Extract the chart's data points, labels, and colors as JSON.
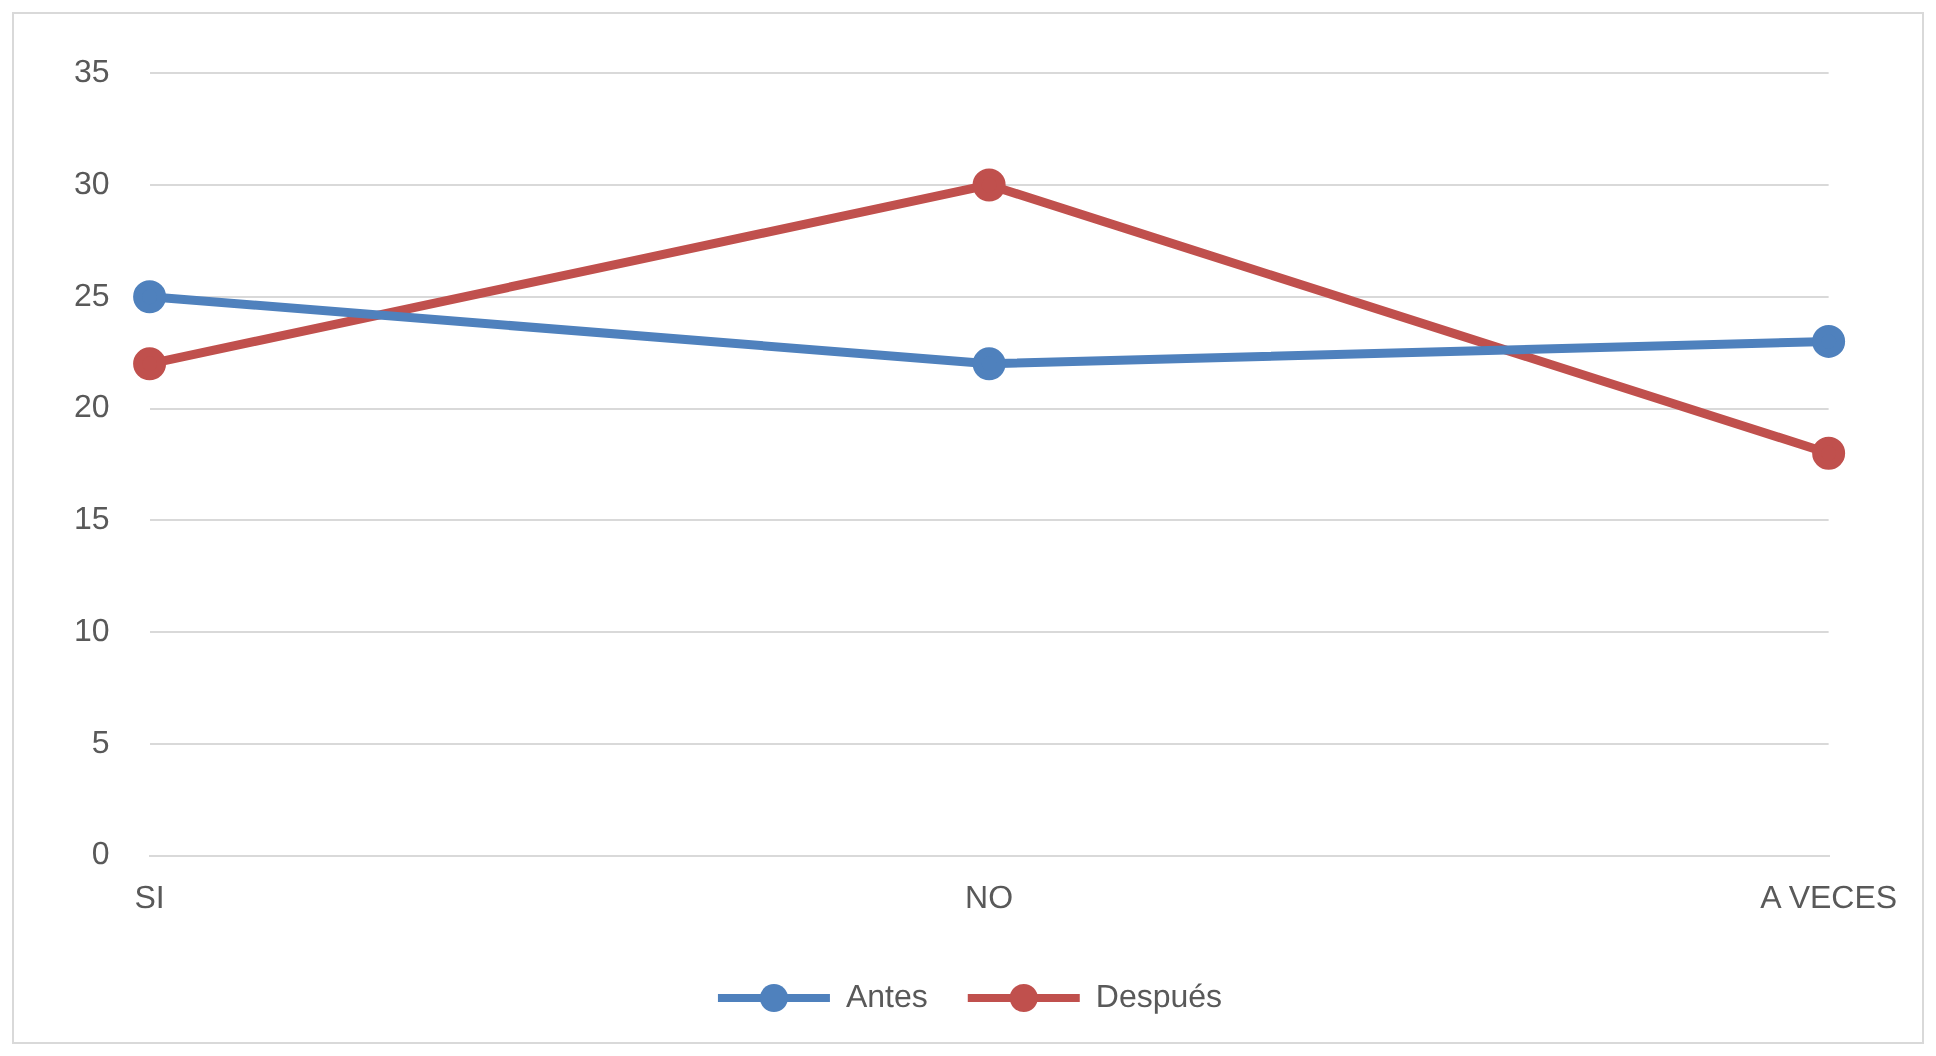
{
  "chart_data": {
    "type": "line",
    "categories": [
      "SI",
      "NO",
      "A VECES"
    ],
    "series": [
      {
        "name": "Antes",
        "color": "#4f81bd",
        "values": [
          25,
          22,
          23
        ]
      },
      {
        "name": "Después",
        "color": "#c0504d",
        "values": [
          22,
          30,
          18
        ]
      }
    ],
    "ylim": [
      0,
      35
    ],
    "yticks": [
      0,
      5,
      10,
      15,
      20,
      25,
      30,
      35
    ],
    "grid": "y",
    "legend": "bottom",
    "marker": "circle",
    "line_style": "solid"
  }
}
